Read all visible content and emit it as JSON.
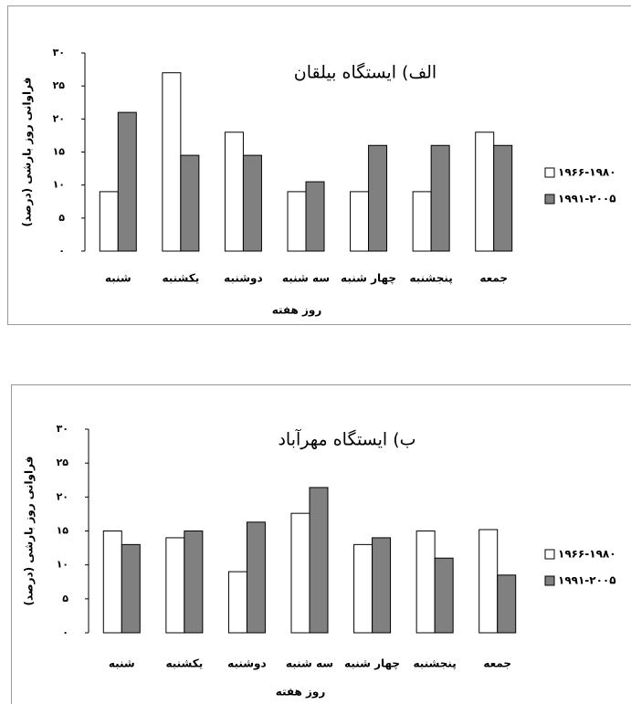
{
  "chart_data": [
    {
      "type": "bar",
      "title": "الف) ایستگاه بیلقان",
      "xlabel": "روز هفته",
      "ylabel": "فراوانی روز بارشی (درصد)",
      "categories": [
        "شنبه",
        "یکشنبه",
        "دوشنبه",
        "سه شنبه",
        "چهار شنبه",
        "پنجشنبه",
        "جمعه"
      ],
      "series": [
        {
          "name": "۱۹۶۶-۱۹۸۰",
          "color": "#ffffff",
          "values": [
            9,
            27,
            18,
            9,
            9,
            9,
            18
          ]
        },
        {
          "name": "۱۹۹۱-۲۰۰۵",
          "color": "#808080",
          "values": [
            21,
            14.5,
            14.5,
            10.5,
            16,
            16,
            16
          ]
        }
      ],
      "ylim": [
        0,
        30
      ],
      "yticks": [
        {
          "value": 0,
          "label": "۰"
        },
        {
          "value": 5,
          "label": "۵"
        },
        {
          "value": 10,
          "label": "۱۰"
        },
        {
          "value": 15,
          "label": "۱۵"
        },
        {
          "value": 20,
          "label": "۲۰"
        },
        {
          "value": 25,
          "label": "۲۵"
        },
        {
          "value": 30,
          "label": "۳۰"
        }
      ],
      "grid": false,
      "legend": "right"
    },
    {
      "type": "bar",
      "title": "ب) ایستگاه مهرآباد",
      "xlabel": "روز هفته",
      "ylabel": "فراوانی روز بارشی (درصد)",
      "categories": [
        "شنبه",
        "یکشنبه",
        "دوشنبه",
        "سه شنبه",
        "چهار شنبه",
        "پنجشنبه",
        "جمعه"
      ],
      "series": [
        {
          "name": "۱۹۶۶-۱۹۸۰",
          "color": "#ffffff",
          "values": [
            15,
            14,
            9,
            17.6,
            13,
            15,
            15.2
          ]
        },
        {
          "name": "۱۹۹۱-۲۰۰۵",
          "color": "#808080",
          "values": [
            13,
            15,
            16.3,
            21.4,
            14,
            11,
            8.5
          ]
        }
      ],
      "ylim": [
        0,
        30
      ],
      "yticks": [
        {
          "value": 0,
          "label": "۰"
        },
        {
          "value": 5,
          "label": "۵"
        },
        {
          "value": 10,
          "label": "۱۰"
        },
        {
          "value": 15,
          "label": "۱۵"
        },
        {
          "value": 20,
          "label": "۲۰"
        },
        {
          "value": 25,
          "label": "۲۵"
        },
        {
          "value": 30,
          "label": "۳۰"
        }
      ],
      "grid": false,
      "legend": "right"
    }
  ]
}
